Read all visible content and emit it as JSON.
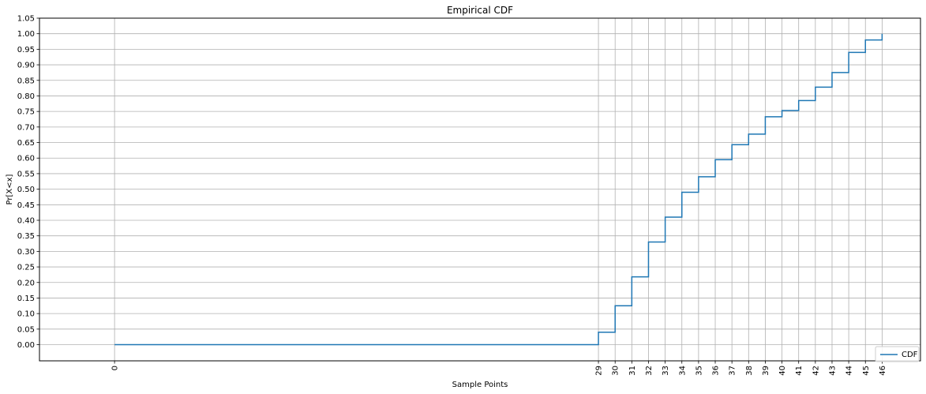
{
  "chart_data": {
    "type": "line",
    "step": true,
    "title": "Empirical CDF",
    "xlabel": "Sample Points",
    "ylabel": "Pr[X<x]",
    "xlim": [
      -4.5,
      48.3
    ],
    "ylim": [
      -0.052,
      1.05
    ],
    "x_ticks": [
      0,
      29,
      30,
      31,
      32,
      33,
      34,
      35,
      36,
      37,
      38,
      39,
      40,
      41,
      42,
      43,
      44,
      45,
      46
    ],
    "x_tick_labels": [
      "0",
      "29",
      "30",
      "31",
      "32",
      "33",
      "34",
      "35",
      "36",
      "37",
      "38",
      "39",
      "40",
      "41",
      "42",
      "43",
      "44",
      "45",
      "46"
    ],
    "y_ticks": [
      0.0,
      0.05,
      0.1,
      0.15,
      0.2,
      0.25,
      0.3,
      0.35,
      0.4,
      0.45,
      0.5,
      0.55,
      0.6,
      0.65,
      0.7,
      0.75,
      0.8,
      0.85,
      0.9,
      0.95,
      1.0,
      1.05
    ],
    "y_tick_labels": [
      "0.00",
      "0.05",
      "0.10",
      "0.15",
      "0.20",
      "0.25",
      "0.30",
      "0.35",
      "0.40",
      "0.45",
      "0.50",
      "0.55",
      "0.60",
      "0.65",
      "0.70",
      "0.75",
      "0.80",
      "0.85",
      "0.90",
      "0.95",
      "1.00",
      "1.05"
    ],
    "grid": true,
    "legend_position": "bottom-right",
    "series": [
      {
        "name": "CDF",
        "color": "#1f77b4",
        "x": [
          0,
          29,
          30,
          31,
          32,
          33,
          34,
          35,
          36,
          37,
          38,
          39,
          40,
          41,
          42,
          43,
          44,
          45,
          46
        ],
        "y": [
          0.0,
          0.04,
          0.125,
          0.218,
          0.33,
          0.41,
          0.49,
          0.54,
          0.595,
          0.643,
          0.677,
          0.733,
          0.753,
          0.785,
          0.828,
          0.875,
          0.94,
          0.98,
          1.0
        ]
      }
    ]
  }
}
